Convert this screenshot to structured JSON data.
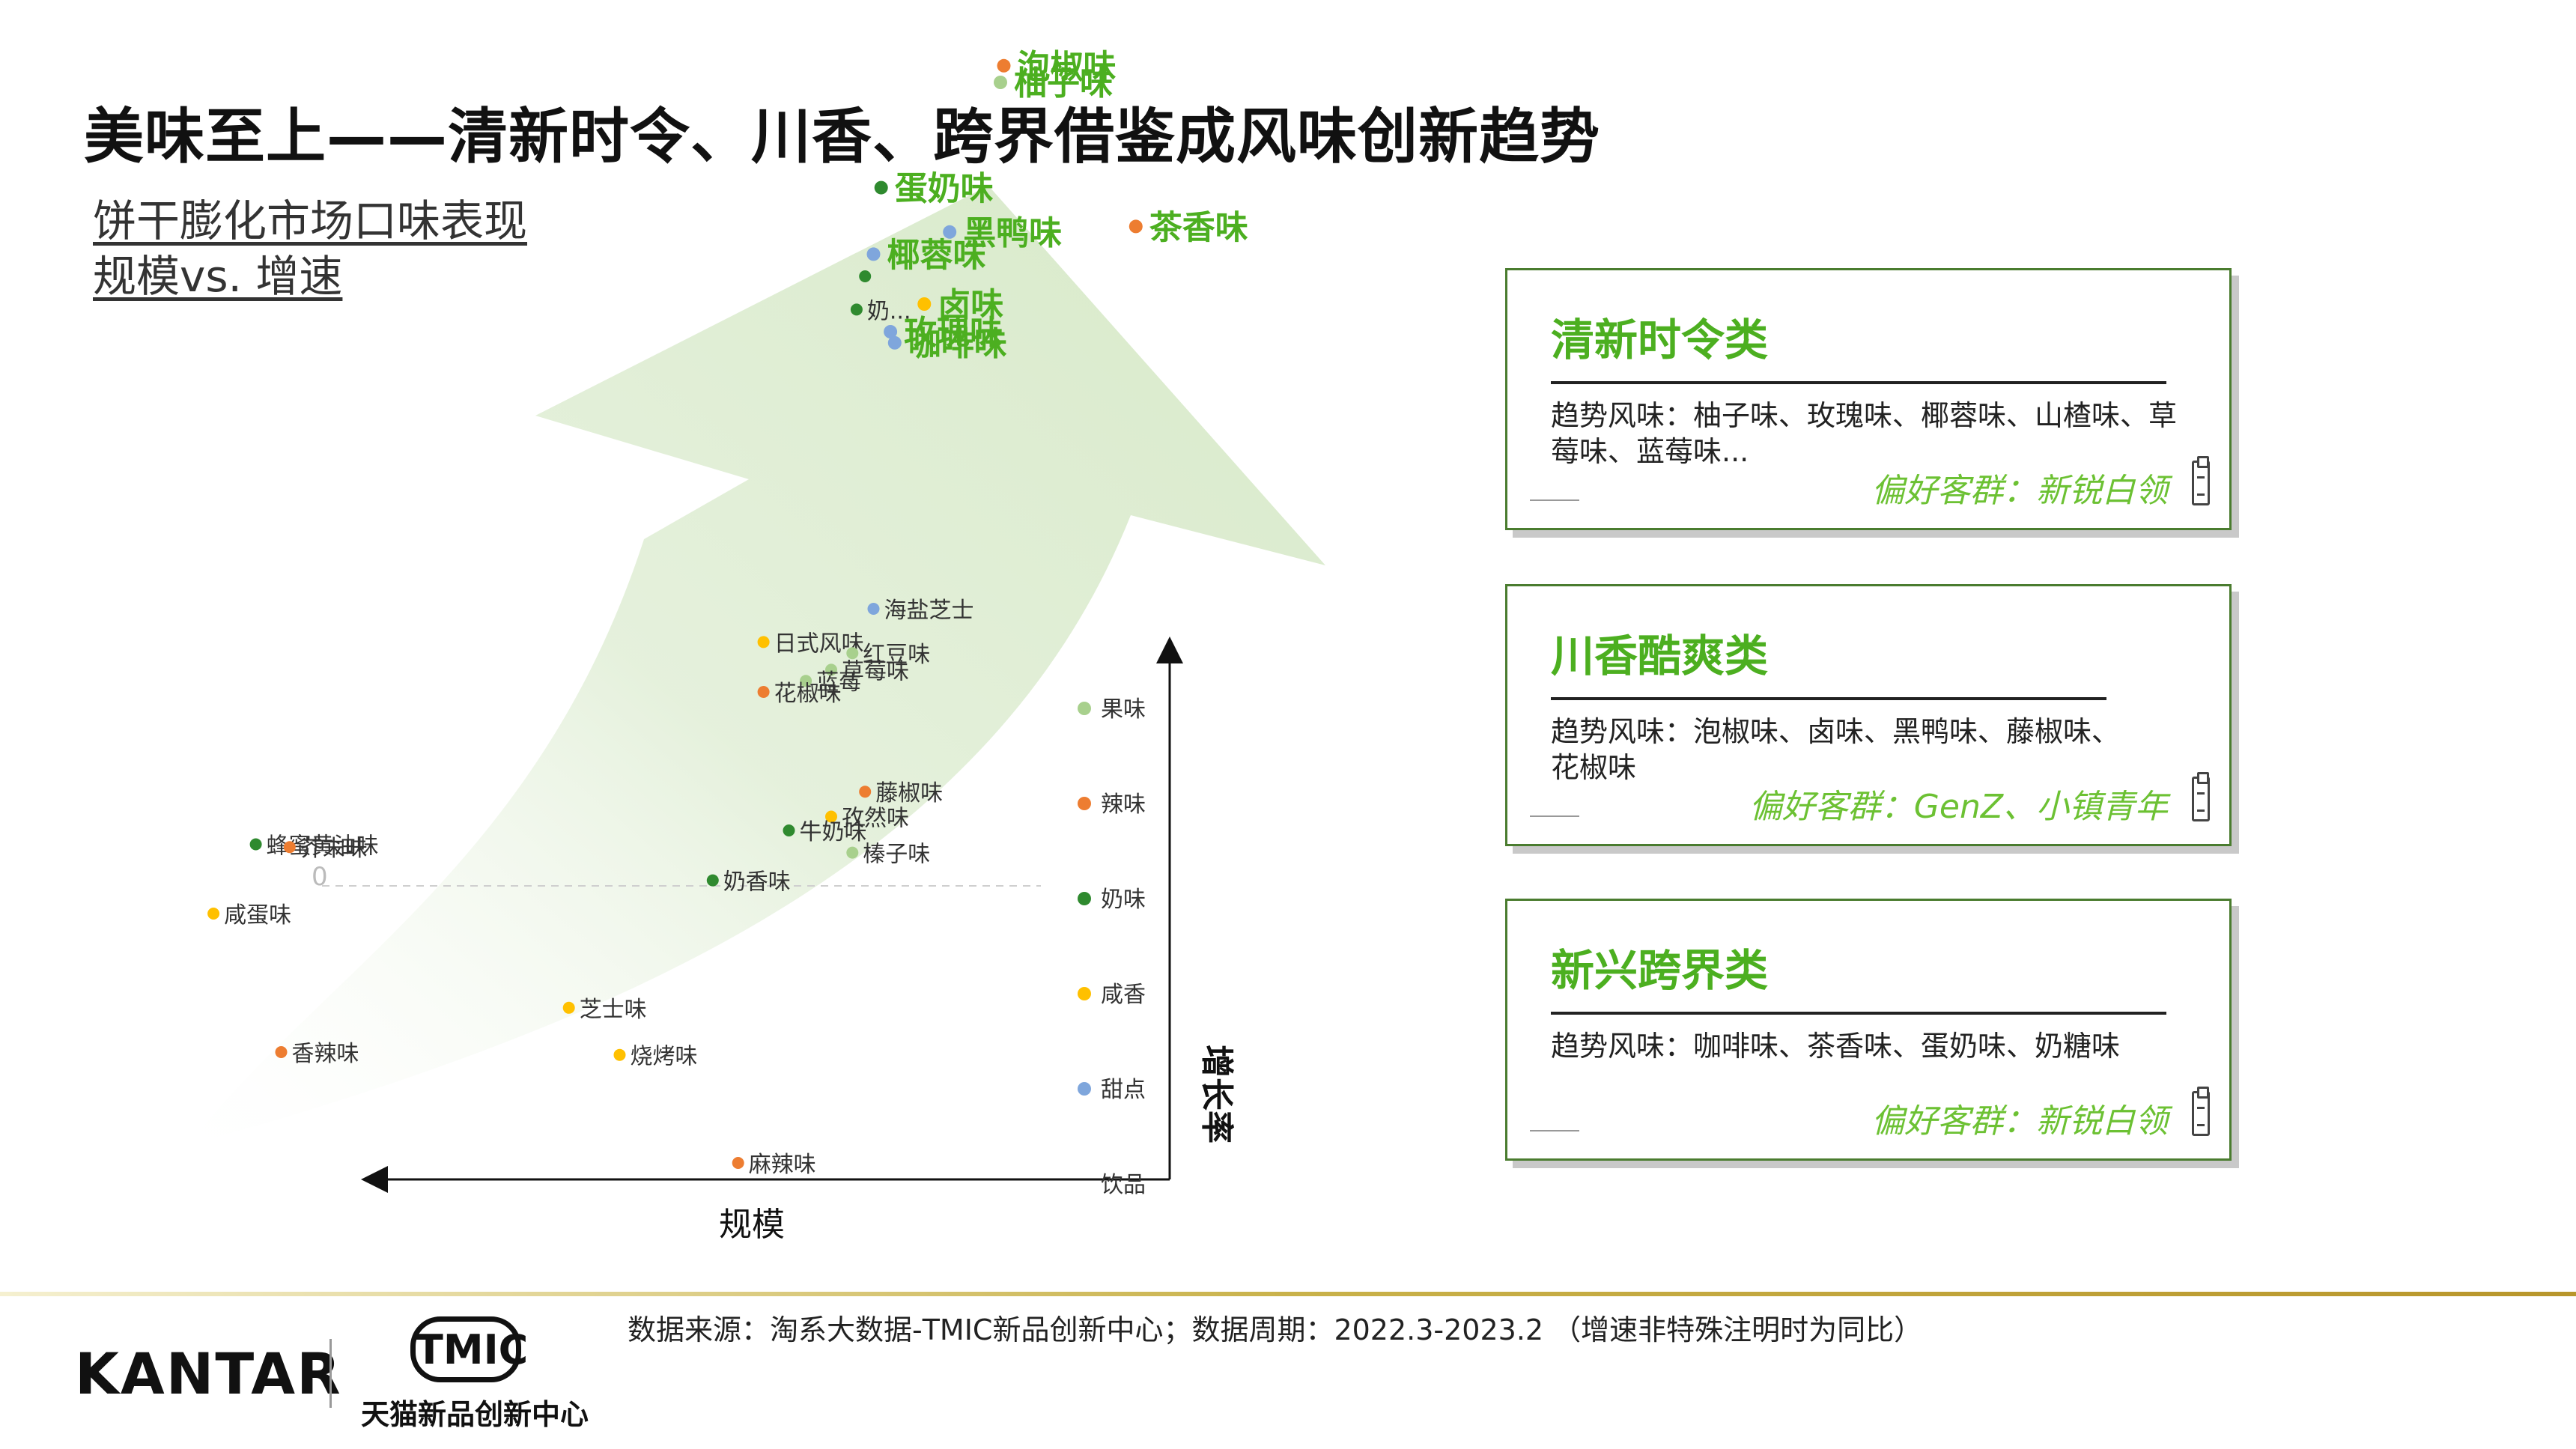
{
  "page": {
    "title": "美味至上——清新时令、川香、跨界借鉴成风味创新趋势",
    "subtitle_line1": "饼干膨化市场口味表现",
    "subtitle_line2": "规模vs. 增速"
  },
  "colors": {
    "fruit": "#a8d08d",
    "spicy": "#ed7d31",
    "milk": "#2f8a2f",
    "salty": "#ffc000",
    "sweet": "#7fa6dc",
    "arrow": "#e2efd8",
    "highlight": "#4caf20",
    "card_border": "#4a7c2f"
  },
  "chart_data": {
    "type": "scatter",
    "xlabel": "规模",
    "ylabel": "增长率",
    "zero_label": "0",
    "legend_position": "right",
    "legend": [
      {
        "name": "果味",
        "key": "fruit"
      },
      {
        "name": "辣味",
        "key": "spicy"
      },
      {
        "name": "奶味",
        "key": "milk"
      },
      {
        "name": "咸香",
        "key": "salty"
      },
      {
        "name": "甜点",
        "key": "sweet"
      },
      {
        "name": "饮品",
        "key": "drink"
      }
    ],
    "points": [
      {
        "label": "泡椒味",
        "category": "spicy",
        "x": 1.96,
        "y": 14.8,
        "highlight": true
      },
      {
        "label": "柚子味",
        "category": "fruit",
        "x": 2.0,
        "y": 14.5,
        "highlight": true
      },
      {
        "label": "蛋奶味",
        "category": "milk",
        "x": 3.41,
        "y": 12.6,
        "highlight": true
      },
      {
        "label": "黑鸭味",
        "category": "sweet",
        "x": 2.6,
        "y": 11.8,
        "highlight": true
      },
      {
        "label": "茶香味",
        "category": "spicy",
        "x": 0.4,
        "y": 11.9,
        "highlight": true
      },
      {
        "label": "椰蓉味",
        "category": "sweet",
        "x": 3.5,
        "y": 11.4,
        "highlight": true
      },
      {
        "label": "",
        "category": "milk",
        "x": 3.6,
        "y": 11.0,
        "highlight": false
      },
      {
        "label": "奶...",
        "category": "milk",
        "x": 3.7,
        "y": 10.4,
        "highlight": false
      },
      {
        "label": "卤味",
        "category": "salty",
        "x": 2.9,
        "y": 10.5,
        "highlight": true
      },
      {
        "label": "玫瑰味",
        "category": "sweet",
        "x": 3.3,
        "y": 10.0,
        "highlight": true
      },
      {
        "label": "咖啡味",
        "category": "sweet",
        "x": 3.25,
        "y": 9.8,
        "highlight": true
      },
      {
        "label": "海盐芝士",
        "category": "sweet",
        "x": 3.5,
        "y": 5.0,
        "highlight": false
      },
      {
        "label": "日式风味",
        "category": "salty",
        "x": 4.8,
        "y": 4.4,
        "highlight": false
      },
      {
        "label": "红豆味",
        "category": "fruit",
        "x": 3.75,
        "y": 4.2,
        "highlight": false
      },
      {
        "label": "草莓味",
        "category": "fruit",
        "x": 4.0,
        "y": 3.9,
        "highlight": false
      },
      {
        "label": "蓝莓",
        "category": "fruit",
        "x": 4.3,
        "y": 3.7,
        "highlight": false
      },
      {
        "label": "花椒味",
        "category": "spicy",
        "x": 4.8,
        "y": 3.5,
        "highlight": false
      },
      {
        "label": "藤椒味",
        "category": "spicy",
        "x": 3.6,
        "y": 1.7,
        "highlight": false
      },
      {
        "label": "孜然味",
        "category": "salty",
        "x": 4.0,
        "y": 1.25,
        "highlight": false
      },
      {
        "label": "牛奶味",
        "category": "milk",
        "x": 4.5,
        "y": 1.0,
        "highlight": false
      },
      {
        "label": "榛子味",
        "category": "fruit",
        "x": 3.75,
        "y": 0.6,
        "highlight": false
      },
      {
        "label": "奶香味",
        "category": "milk",
        "x": 5.4,
        "y": 0.1,
        "highlight": false
      },
      {
        "label": "蜂蜜黄油味",
        "category": "milk",
        "x": 10.8,
        "y": 0.75,
        "highlight": false
      },
      {
        "label": "芥末味",
        "category": "spicy",
        "x": 10.4,
        "y": 0.7,
        "highlight": false
      },
      {
        "label": "咸蛋味",
        "category": "salty",
        "x": 11.3,
        "y": -0.5,
        "highlight": false
      },
      {
        "label": "芝士味",
        "category": "salty",
        "x": 7.1,
        "y": -2.2,
        "highlight": false
      },
      {
        "label": "香辣味",
        "category": "spicy",
        "x": 10.5,
        "y": -3.0,
        "highlight": false
      },
      {
        "label": "烧烤味",
        "category": "salty",
        "x": 6.5,
        "y": -3.05,
        "highlight": false
      },
      {
        "label": "麻辣味",
        "category": "spicy",
        "x": 5.1,
        "y": -5.0,
        "highlight": false
      }
    ]
  },
  "cards": [
    {
      "title": "清新时令类",
      "body": "趋势风味：柚子味、玫瑰味、椰蓉味、山楂味、草莓味、蓝莓味...",
      "group": "偏好客群：新锐白领"
    },
    {
      "title": "川香酷爽类",
      "body": "趋势风味：泡椒味、卤味、黑鸭味、藤椒味、花椒味",
      "group": "偏好客群：GenZ、小镇青年"
    },
    {
      "title": "新兴跨界类",
      "body": "趋势风味：咖啡味、茶香味、蛋奶味、奶糖味",
      "group": "偏好客群：新锐白领"
    }
  ],
  "footer": {
    "source": "数据来源：淘系大数据-TMIC新品创新中心；数据周期：2022.3-2023.2 （增速非特殊注明时为同比）",
    "kantar": "KANTAR",
    "tmic": "TMIC",
    "tmic_caption": "天猫新品创新中心"
  }
}
